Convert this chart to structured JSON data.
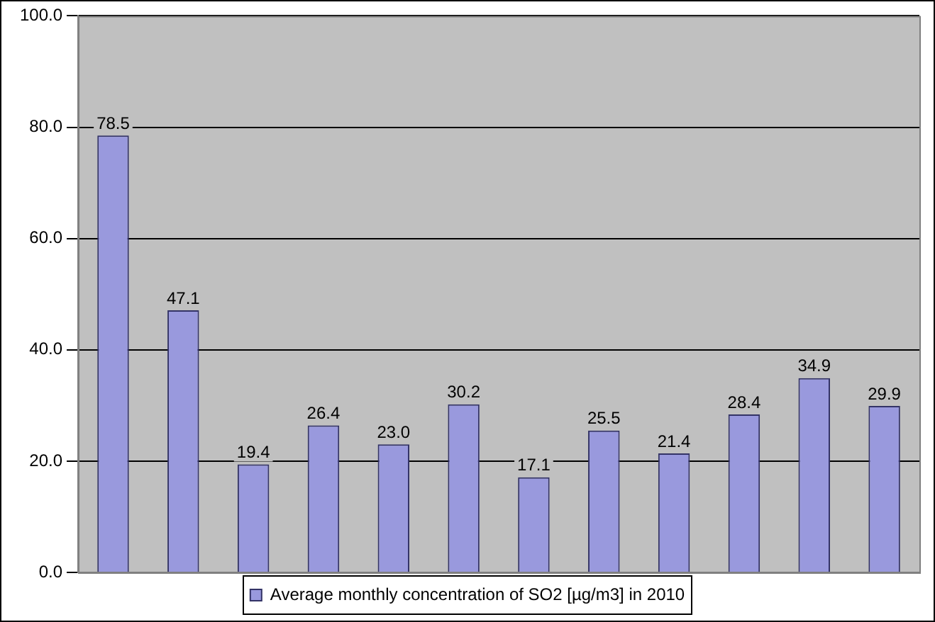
{
  "chart_data": {
    "type": "bar",
    "categories": [
      null,
      null,
      null,
      null,
      null,
      null,
      null,
      null,
      null,
      null,
      null,
      null
    ],
    "series": [
      {
        "name": "Average monthly concentration of SO2 [µg/m3] in 2010",
        "color": "#9999dd",
        "values": [
          78.5,
          47.1,
          19.4,
          26.4,
          23.0,
          30.2,
          17.1,
          25.5,
          21.4,
          28.4,
          34.9,
          29.9
        ],
        "value_labels": [
          "78.5",
          "47.1",
          "19.4",
          "26.4",
          "23.0",
          "30.2",
          "17.1",
          "25.5",
          "21.4",
          "28.4",
          "34.9",
          "29.9"
        ]
      }
    ],
    "ylim": [
      0,
      100
    ],
    "yticks": [
      {
        "value": 0,
        "label": "0.0"
      },
      {
        "value": 20,
        "label": "20.0"
      },
      {
        "value": 40,
        "label": "40.0"
      },
      {
        "value": 60,
        "label": "60.0"
      },
      {
        "value": 80,
        "label": "80.0"
      },
      {
        "value": 100,
        "label": "100.0"
      }
    ],
    "grid": "y",
    "legend": "bottom"
  }
}
